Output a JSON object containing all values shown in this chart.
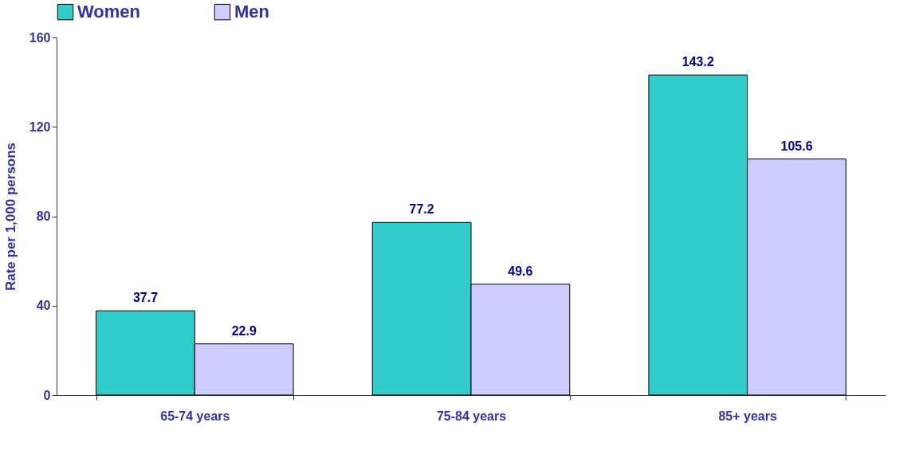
{
  "chart_data": {
    "type": "bar",
    "ylabel": "Rate per 1,000 persons",
    "categories": [
      "65-74 years",
      "75-84 years",
      "85+ years"
    ],
    "series": [
      {
        "name": "Women",
        "color": "#33cccc",
        "values": [
          37.7,
          77.2,
          143.2
        ]
      },
      {
        "name": "Men",
        "color": "#ccccff",
        "values": [
          22.9,
          49.6,
          105.6
        ]
      }
    ],
    "ylim": [
      0,
      160
    ],
    "yticks": [
      0,
      40,
      80,
      120,
      160
    ],
    "data_labels": true,
    "legend": "top",
    "grid": false
  }
}
